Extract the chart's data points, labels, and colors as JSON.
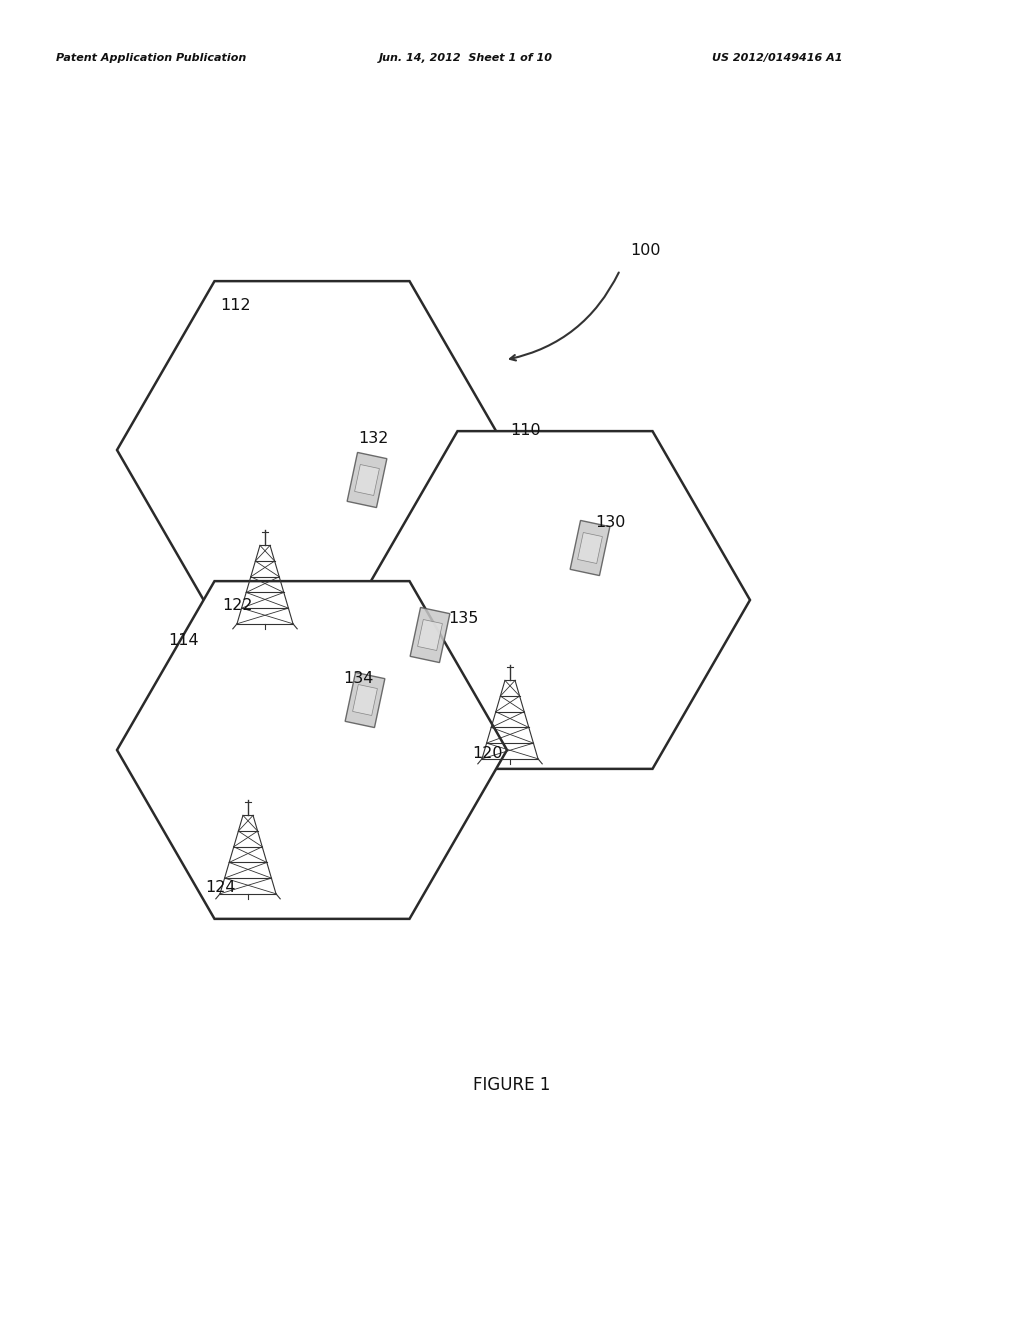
{
  "bg_color": "#ffffff",
  "header_left": "Patent Application Publication",
  "header_mid": "Jun. 14, 2012  Sheet 1 of 10",
  "header_right": "US 2012/0149416 A1",
  "figure_label": "FIGURE 1",
  "label_100": "100",
  "label_110": "110",
  "label_112": "112",
  "label_114": "114",
  "label_120": "120",
  "label_122": "122",
  "label_124": "124",
  "label_130": "130",
  "label_132": "132",
  "label_134": "134",
  "label_135": "135",
  "hex_linewidth": 1.8,
  "hex_edgecolor": "#2a2a2a",
  "hex_facecolor": "#ffffff",
  "tower_color": "#333333",
  "phone_face": "#c8c8c8",
  "phone_edge": "#555555"
}
